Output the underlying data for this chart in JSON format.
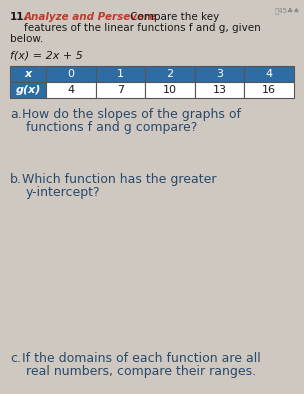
{
  "background_color": "#cec8c0",
  "number": "11.",
  "label_bold": "Analyze and Persevere",
  "label_bold_color": "#c0392b",
  "intro_line1": "Compare the key",
  "intro_line2": "features of the linear functions f and g, given",
  "intro_line3": "below.",
  "fx_label": "f(x) = 2x + 5",
  "table_header_bg": "#2e6da4",
  "table_header_text_color": "#ffffff",
  "table_body_bg": "#ffffff",
  "table_border_color": "#555555",
  "table_x_label": "x",
  "table_gx_label": "g(x)",
  "table_x_values": [
    "0",
    "1",
    "2",
    "3",
    "4"
  ],
  "table_gx_values": [
    "4",
    "7",
    "10",
    "13",
    "16"
  ],
  "question_a_label": "a.",
  "question_a_line1": "How do the slopes of the graphs of",
  "question_a_line2": "functions f and g compare?",
  "question_b_label": "b.",
  "question_b_line1": "Which function has the greater",
  "question_b_line2": "y-intercept?",
  "question_c_label": "c.",
  "question_c_line1": "If the domains of each function are all",
  "question_c_line2": "real numbers, compare their ranges.",
  "text_color": "#2a4a6a",
  "dark_text_color": "#1a1a1a",
  "icon_color": "#888888",
  "fs_body": 7.5,
  "fs_question": 9.0
}
